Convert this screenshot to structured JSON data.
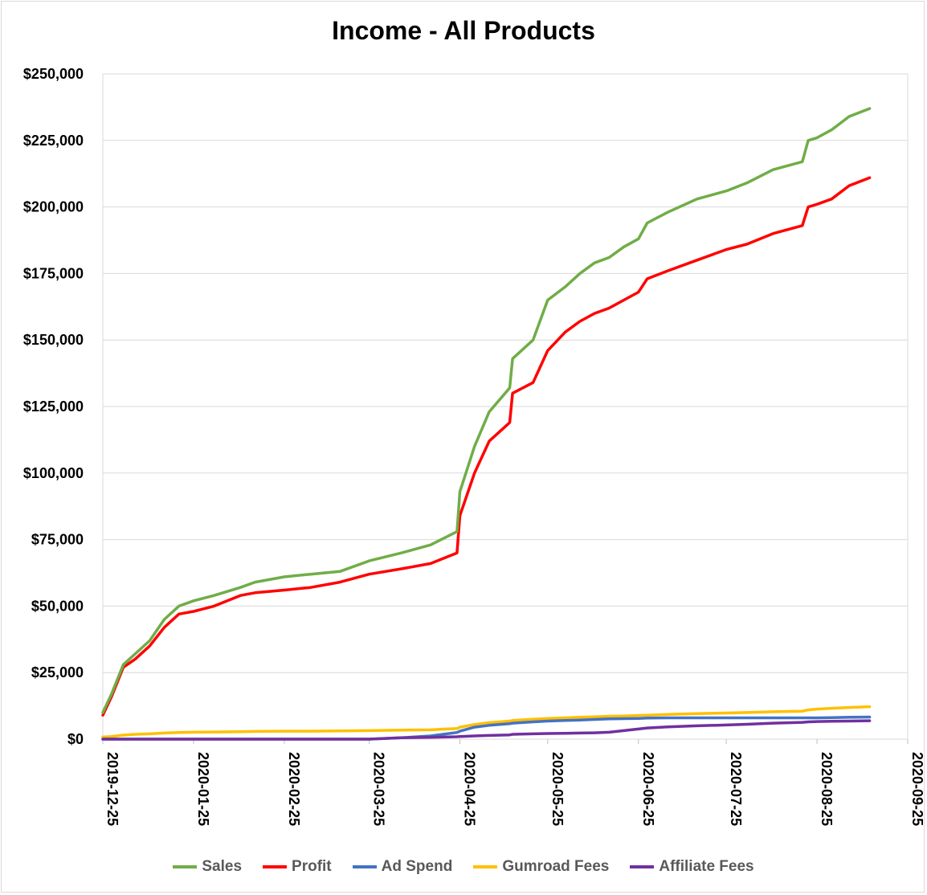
{
  "chart_data": {
    "type": "line",
    "title": "Income - All Products",
    "xlabel": "",
    "ylabel": "",
    "ylim": [
      0,
      250000
    ],
    "yticks": [
      "$0",
      "$25,000",
      "$50,000",
      "$75,000",
      "$100,000",
      "$125,000",
      "$150,000",
      "$175,000",
      "$200,000",
      "$225,000",
      "$250,000"
    ],
    "xticks": [
      "2019-12-25",
      "2020-01-25",
      "2020-02-25",
      "2020-03-25",
      "2020-04-25",
      "2020-05-25",
      "2020-06-25",
      "2020-07-25",
      "2020-08-25",
      "2020-09-25"
    ],
    "grid": "horizontal",
    "legend": "bottom",
    "x": [
      "2019-12-25",
      "2019-12-28",
      "2020-01-01",
      "2020-01-05",
      "2020-01-10",
      "2020-01-15",
      "2020-01-20",
      "2020-01-25",
      "2020-02-01",
      "2020-02-10",
      "2020-02-15",
      "2020-02-25",
      "2020-03-05",
      "2020-03-15",
      "2020-03-25",
      "2020-04-05",
      "2020-04-15",
      "2020-04-24",
      "2020-04-25",
      "2020-04-30",
      "2020-05-05",
      "2020-05-12",
      "2020-05-13",
      "2020-05-20",
      "2020-05-25",
      "2020-05-31",
      "2020-06-05",
      "2020-06-10",
      "2020-06-15",
      "2020-06-20",
      "2020-06-25",
      "2020-06-28",
      "2020-07-05",
      "2020-07-15",
      "2020-07-25",
      "2020-08-01",
      "2020-08-10",
      "2020-08-20",
      "2020-08-22",
      "2020-08-25",
      "2020-08-30",
      "2020-09-05",
      "2020-09-12"
    ],
    "series": [
      {
        "name": "Sales",
        "color": "#70ad47",
        "values": [
          10000,
          17000,
          28000,
          32000,
          37000,
          45000,
          50000,
          52000,
          54000,
          57000,
          59000,
          61000,
          62000,
          63000,
          67000,
          70000,
          73000,
          78000,
          93000,
          110000,
          123000,
          132000,
          143000,
          150000,
          165000,
          170000,
          175000,
          179000,
          181000,
          185000,
          188000,
          194000,
          198000,
          203000,
          206000,
          209000,
          214000,
          217000,
          225000,
          226000,
          229000,
          234000,
          237000
        ]
      },
      {
        "name": "Profit",
        "color": "#ff0000",
        "values": [
          9000,
          16000,
          27000,
          30000,
          35000,
          42000,
          47000,
          48000,
          50000,
          54000,
          55000,
          56000,
          57000,
          59000,
          62000,
          64000,
          66000,
          70000,
          84000,
          100000,
          112000,
          119000,
          130000,
          134000,
          146000,
          153000,
          157000,
          160000,
          162000,
          165000,
          168000,
          173000,
          176000,
          180000,
          184000,
          186000,
          190000,
          193000,
          200000,
          201000,
          203000,
          208000,
          211000
        ]
      },
      {
        "name": "Ad Spend",
        "color": "#4472c4",
        "values": [
          0,
          0,
          0,
          0,
          0,
          0,
          0,
          0,
          0,
          0,
          0,
          0,
          0,
          0,
          0,
          500,
          1200,
          2500,
          3000,
          4500,
          5200,
          5800,
          6000,
          6500,
          6800,
          7000,
          7200,
          7400,
          7600,
          7700,
          7800,
          7900,
          8000,
          8000,
          8000,
          8000,
          8000,
          8000,
          8000,
          8000,
          8100,
          8200,
          8300
        ]
      },
      {
        "name": "Gumroad Fees",
        "color": "#ffc000",
        "values": [
          800,
          1000,
          1500,
          1800,
          2000,
          2300,
          2500,
          2600,
          2700,
          2800,
          2900,
          3000,
          3000,
          3100,
          3200,
          3400,
          3500,
          4000,
          4500,
          5500,
          6200,
          6800,
          7000,
          7500,
          7800,
          8000,
          8200,
          8400,
          8600,
          8700,
          8900,
          9000,
          9300,
          9600,
          9800,
          10000,
          10300,
          10500,
          11000,
          11300,
          11600,
          11900,
          12200
        ]
      },
      {
        "name": "Affiliate Fees",
        "color": "#7030a0",
        "values": [
          0,
          0,
          0,
          0,
          0,
          0,
          0,
          0,
          0,
          0,
          0,
          0,
          0,
          0,
          0,
          500,
          700,
          900,
          1000,
          1200,
          1400,
          1600,
          1800,
          2000,
          2100,
          2200,
          2300,
          2400,
          2600,
          3200,
          3800,
          4200,
          4600,
          5000,
          5300,
          5600,
          6000,
          6300,
          6500,
          6600,
          6700,
          6800,
          6900
        ]
      }
    ]
  }
}
